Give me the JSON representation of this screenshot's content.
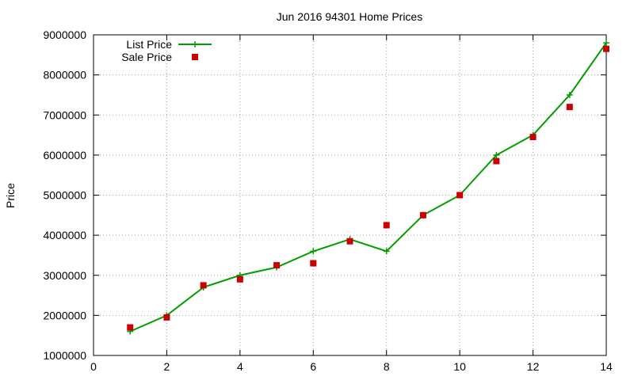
{
  "chart_data": {
    "type": "line",
    "title": "Jun 2016 94301 Home Prices",
    "xlabel": "",
    "ylabel": "Price",
    "xlim": [
      0,
      14
    ],
    "ylim": [
      1000000,
      9000000
    ],
    "xticks": [
      0,
      2,
      4,
      6,
      8,
      10,
      12,
      14
    ],
    "yticks": [
      1000000,
      2000000,
      3000000,
      4000000,
      5000000,
      6000000,
      7000000,
      8000000,
      9000000
    ],
    "grid": true,
    "legend_position": "top-left",
    "series": [
      {
        "name": "List Price",
        "style": "linespoints",
        "marker": "plus",
        "color": "#009E00",
        "x": [
          1,
          2,
          3,
          4,
          5,
          6,
          7,
          8,
          9,
          10,
          11,
          12,
          13,
          14
        ],
        "y": [
          1600000,
          2000000,
          2700000,
          3000000,
          3200000,
          3600000,
          3900000,
          3600000,
          4500000,
          5000000,
          6000000,
          6500000,
          7500000,
          8800000
        ]
      },
      {
        "name": "Sale Price",
        "style": "points",
        "marker": "square",
        "color": "#CC0000",
        "x": [
          1,
          2,
          3,
          4,
          5,
          6,
          7,
          8,
          9,
          10,
          11,
          12,
          13,
          14
        ],
        "y": [
          1700000,
          1950000,
          2750000,
          2900000,
          3250000,
          3300000,
          3850000,
          4250000,
          4500000,
          5000000,
          5850000,
          6450000,
          7200000,
          8650000
        ]
      }
    ]
  }
}
